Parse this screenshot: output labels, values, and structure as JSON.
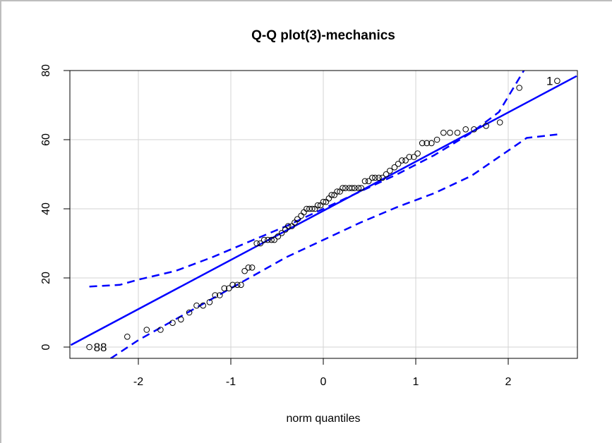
{
  "chart_data": {
    "type": "scatter",
    "title": "Q-Q plot(3)-mechanics",
    "xlabel": "norm quantiles",
    "ylabel": "",
    "xlim": [
      -2.73,
      2.74
    ],
    "ylim": [
      -3.3,
      80
    ],
    "x_ticks": [
      -2,
      -1,
      0,
      1,
      2
    ],
    "x_tick_labels": [
      "-2",
      "-1",
      "0",
      "1",
      "2"
    ],
    "y_ticks": [
      0,
      20,
      40,
      60,
      80
    ],
    "y_tick_labels": [
      "0",
      "20",
      "40",
      "60",
      "80"
    ],
    "grid": true,
    "legend": null,
    "series": [
      {
        "name": "sample quantiles",
        "marker": "open-circle",
        "color": "#000000",
        "points": [
          [
            -2.53,
            0
          ],
          [
            -2.12,
            3
          ],
          [
            -1.91,
            5
          ],
          [
            -1.76,
            5
          ],
          [
            -1.63,
            7
          ],
          [
            -1.54,
            8
          ],
          [
            -1.45,
            10
          ],
          [
            -1.37,
            12
          ],
          [
            -1.3,
            12
          ],
          [
            -1.23,
            13
          ],
          [
            -1.17,
            15
          ],
          [
            -1.12,
            15
          ],
          [
            -1.07,
            17
          ],
          [
            -1.02,
            17
          ],
          [
            -0.98,
            18
          ],
          [
            -0.93,
            18
          ],
          [
            -0.89,
            18
          ],
          [
            -0.85,
            22
          ],
          [
            -0.81,
            23
          ],
          [
            -0.77,
            23
          ],
          [
            -0.72,
            30
          ],
          [
            -0.68,
            30
          ],
          [
            -0.64,
            31
          ],
          [
            -0.6,
            31
          ],
          [
            -0.56,
            31
          ],
          [
            -0.53,
            31
          ],
          [
            -0.49,
            32
          ],
          [
            -0.45,
            33
          ],
          [
            -0.41,
            34
          ],
          [
            -0.38,
            35
          ],
          [
            -0.34,
            35
          ],
          [
            -0.31,
            36
          ],
          [
            -0.28,
            37
          ],
          [
            -0.24,
            38
          ],
          [
            -0.21,
            39
          ],
          [
            -0.18,
            40
          ],
          [
            -0.15,
            40
          ],
          [
            -0.12,
            40
          ],
          [
            -0.09,
            40
          ],
          [
            -0.06,
            41
          ],
          [
            -0.03,
            41
          ],
          [
            0.0,
            42
          ],
          [
            0.03,
            42
          ],
          [
            0.06,
            43
          ],
          [
            0.09,
            44
          ],
          [
            0.12,
            44
          ],
          [
            0.15,
            45
          ],
          [
            0.18,
            45
          ],
          [
            0.21,
            46
          ],
          [
            0.24,
            46
          ],
          [
            0.28,
            46
          ],
          [
            0.31,
            46
          ],
          [
            0.34,
            46
          ],
          [
            0.38,
            46
          ],
          [
            0.41,
            46
          ],
          [
            0.45,
            48
          ],
          [
            0.49,
            48
          ],
          [
            0.53,
            49
          ],
          [
            0.56,
            49
          ],
          [
            0.6,
            49
          ],
          [
            0.64,
            49
          ],
          [
            0.68,
            50
          ],
          [
            0.72,
            51
          ],
          [
            0.77,
            52
          ],
          [
            0.81,
            53
          ],
          [
            0.85,
            54
          ],
          [
            0.89,
            54
          ],
          [
            0.93,
            55
          ],
          [
            0.98,
            55
          ],
          [
            1.02,
            56
          ],
          [
            1.07,
            59
          ],
          [
            1.12,
            59
          ],
          [
            1.17,
            59
          ],
          [
            1.23,
            60
          ],
          [
            1.3,
            62
          ],
          [
            1.37,
            62
          ],
          [
            1.45,
            62
          ],
          [
            1.54,
            63
          ],
          [
            1.63,
            63
          ],
          [
            1.76,
            64
          ],
          [
            1.91,
            65
          ],
          [
            2.12,
            75
          ],
          [
            2.53,
            77
          ]
        ]
      },
      {
        "name": "reference line",
        "style": "solid",
        "color": "#0000ff",
        "points": [
          [
            -2.73,
            0.6
          ],
          [
            2.74,
            78.4
          ]
        ]
      },
      {
        "name": "upper confidence envelope",
        "style": "dashed",
        "color": "#0000ff",
        "points": [
          [
            -2.53,
            17.5
          ],
          [
            -2.2,
            18
          ],
          [
            -2.0,
            19.5
          ],
          [
            -1.6,
            22
          ],
          [
            -1.2,
            26
          ],
          [
            -0.8,
            30.5
          ],
          [
            -0.4,
            35
          ],
          [
            0,
            40
          ],
          [
            0.4,
            45
          ],
          [
            0.8,
            50
          ],
          [
            1.2,
            55.5
          ],
          [
            1.6,
            62
          ],
          [
            1.9,
            68
          ],
          [
            2.18,
            80.5
          ]
        ]
      },
      {
        "name": "lower confidence envelope",
        "style": "dashed",
        "color": "#0000ff",
        "points": [
          [
            -2.3,
            -3.3
          ],
          [
            -2.0,
            2
          ],
          [
            -1.6,
            8
          ],
          [
            -1.2,
            14
          ],
          [
            -0.8,
            20
          ],
          [
            -0.4,
            26
          ],
          [
            0,
            31
          ],
          [
            0.4,
            36
          ],
          [
            0.8,
            40.5
          ],
          [
            1.2,
            44.5
          ],
          [
            1.6,
            49.5
          ],
          [
            1.9,
            55
          ],
          [
            2.2,
            60.5
          ],
          [
            2.53,
            61.5
          ]
        ]
      }
    ],
    "annotations": [
      {
        "text": "88",
        "x": -2.53,
        "y": 0,
        "position": "right"
      },
      {
        "text": "1",
        "x": 2.53,
        "y": 77,
        "position": "left"
      }
    ]
  }
}
